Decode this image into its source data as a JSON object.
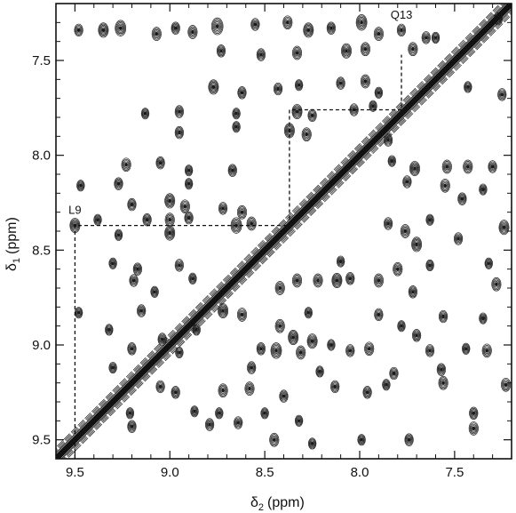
{
  "chart_data": {
    "type": "scatter",
    "subtype": "2D NMR contour plot",
    "title": "",
    "xlabel": "δ",
    "xlabel_sub": "2",
    "xlabel_unit": "(ppm)",
    "ylabel": "δ",
    "ylabel_sub": "1",
    "ylabel_unit": "(ppm)",
    "xlim": [
      9.6,
      7.2
    ],
    "ylim": [
      7.2,
      9.6
    ],
    "x_reversed": true,
    "y_reversed": true,
    "xticks": [
      9.5,
      9.0,
      8.5,
      8.0,
      7.5
    ],
    "xtick_labels": [
      "9.5",
      "9.0",
      "8.5",
      "8.0",
      "7.5"
    ],
    "yticks": [
      7.5,
      8.0,
      8.5,
      9.0,
      9.5
    ],
    "ytick_labels": [
      "7.5",
      "8.0",
      "8.5",
      "9.0",
      "9.5"
    ],
    "grid": false,
    "diagonal": {
      "from": [
        9.6,
        9.6
      ],
      "to": [
        7.2,
        7.2
      ]
    },
    "annotations": [
      {
        "label": "L9",
        "x": 9.5,
        "y": 8.37
      },
      {
        "label": "Q13",
        "x": 7.78,
        "y": 7.34
      }
    ],
    "assignment_path": [
      [
        9.5,
        9.6
      ],
      [
        9.5,
        8.37
      ],
      [
        8.37,
        8.37
      ],
      [
        8.37,
        7.76
      ],
      [
        7.78,
        7.76
      ],
      [
        7.78,
        7.47
      ]
    ],
    "peaks": [
      {
        "x": 9.48,
        "y": 7.34,
        "s": 0.7
      },
      {
        "x": 9.35,
        "y": 7.34,
        "s": 0.9
      },
      {
        "x": 9.26,
        "y": 7.33,
        "s": 1.0
      },
      {
        "x": 9.07,
        "y": 7.36,
        "s": 0.8
      },
      {
        "x": 8.97,
        "y": 7.33,
        "s": 0.7
      },
      {
        "x": 8.88,
        "y": 7.35,
        "s": 0.8
      },
      {
        "x": 8.75,
        "y": 7.32,
        "s": 1.1
      },
      {
        "x": 8.55,
        "y": 7.31,
        "s": 0.7
      },
      {
        "x": 8.38,
        "y": 7.3,
        "s": 0.8
      },
      {
        "x": 8.27,
        "y": 7.34,
        "s": 0.9
      },
      {
        "x": 8.15,
        "y": 7.33,
        "s": 0.7
      },
      {
        "x": 7.99,
        "y": 7.3,
        "s": 1.0
      },
      {
        "x": 7.9,
        "y": 7.36,
        "s": 0.8
      },
      {
        "x": 7.78,
        "y": 7.34,
        "s": 0.7
      },
      {
        "x": 7.65,
        "y": 7.38,
        "s": 0.7
      },
      {
        "x": 7.27,
        "y": 7.28,
        "s": 0.7
      },
      {
        "x": 8.73,
        "y": 7.45,
        "s": 0.7
      },
      {
        "x": 8.52,
        "y": 7.47,
        "s": 0.7
      },
      {
        "x": 8.33,
        "y": 7.46,
        "s": 0.8
      },
      {
        "x": 8.07,
        "y": 7.45,
        "s": 0.9
      },
      {
        "x": 7.97,
        "y": 7.44,
        "s": 0.8
      },
      {
        "x": 7.72,
        "y": 7.44,
        "s": 0.8
      },
      {
        "x": 7.6,
        "y": 7.38,
        "s": 0.6
      },
      {
        "x": 8.77,
        "y": 7.64,
        "s": 0.9
      },
      {
        "x": 8.62,
        "y": 7.67,
        "s": 0.7
      },
      {
        "x": 8.43,
        "y": 7.65,
        "s": 0.7
      },
      {
        "x": 8.32,
        "y": 7.63,
        "s": 0.6
      },
      {
        "x": 8.1,
        "y": 7.62,
        "s": 0.7
      },
      {
        "x": 7.97,
        "y": 7.61,
        "s": 0.8
      },
      {
        "x": 7.43,
        "y": 7.64,
        "s": 0.6
      },
      {
        "x": 7.25,
        "y": 7.68,
        "s": 0.7
      },
      {
        "x": 7.9,
        "y": 7.67,
        "s": 0.6
      },
      {
        "x": 9.13,
        "y": 7.78,
        "s": 0.6
      },
      {
        "x": 8.95,
        "y": 7.77,
        "s": 0.7
      },
      {
        "x": 8.65,
        "y": 7.78,
        "s": 0.6
      },
      {
        "x": 8.33,
        "y": 7.77,
        "s": 0.9
      },
      {
        "x": 8.25,
        "y": 7.79,
        "s": 0.7
      },
      {
        "x": 8.03,
        "y": 7.76,
        "s": 0.7
      },
      {
        "x": 7.93,
        "y": 7.74,
        "s": 0.6
      },
      {
        "x": 8.95,
        "y": 7.88,
        "s": 0.7
      },
      {
        "x": 8.65,
        "y": 7.85,
        "s": 0.6
      },
      {
        "x": 8.37,
        "y": 7.87,
        "s": 0.9
      },
      {
        "x": 8.28,
        "y": 7.89,
        "s": 0.8
      },
      {
        "x": 7.85,
        "y": 7.92,
        "s": 0.7
      },
      {
        "x": 9.23,
        "y": 8.05,
        "s": 0.8
      },
      {
        "x": 9.05,
        "y": 8.04,
        "s": 0.7
      },
      {
        "x": 8.9,
        "y": 8.08,
        "s": 0.6
      },
      {
        "x": 8.67,
        "y": 8.08,
        "s": 0.7
      },
      {
        "x": 7.83,
        "y": 8.03,
        "s": 0.6
      },
      {
        "x": 7.71,
        "y": 8.07,
        "s": 0.9
      },
      {
        "x": 7.54,
        "y": 8.06,
        "s": 0.8
      },
      {
        "x": 7.43,
        "y": 8.06,
        "s": 0.8
      },
      {
        "x": 7.3,
        "y": 8.06,
        "s": 0.7
      },
      {
        "x": 9.47,
        "y": 8.16,
        "s": 0.6
      },
      {
        "x": 9.27,
        "y": 8.15,
        "s": 0.7
      },
      {
        "x": 8.9,
        "y": 8.15,
        "s": 0.6
      },
      {
        "x": 7.75,
        "y": 8.14,
        "s": 0.7
      },
      {
        "x": 7.55,
        "y": 8.16,
        "s": 0.8
      },
      {
        "x": 7.35,
        "y": 8.18,
        "s": 0.6
      },
      {
        "x": 9.2,
        "y": 8.26,
        "s": 0.7
      },
      {
        "x": 9.0,
        "y": 8.24,
        "s": 0.9
      },
      {
        "x": 8.92,
        "y": 8.27,
        "s": 0.8
      },
      {
        "x": 8.72,
        "y": 8.28,
        "s": 0.7
      },
      {
        "x": 8.62,
        "y": 8.3,
        "s": 0.8
      },
      {
        "x": 7.46,
        "y": 8.23,
        "s": 0.7
      },
      {
        "x": 9.5,
        "y": 8.37,
        "s": 0.9
      },
      {
        "x": 9.38,
        "y": 8.34,
        "s": 0.6
      },
      {
        "x": 9.12,
        "y": 8.34,
        "s": 0.7
      },
      {
        "x": 9.0,
        "y": 8.34,
        "s": 0.8
      },
      {
        "x": 8.9,
        "y": 8.33,
        "s": 0.7
      },
      {
        "x": 8.65,
        "y": 8.37,
        "s": 1.0
      },
      {
        "x": 8.57,
        "y": 8.36,
        "s": 0.8
      },
      {
        "x": 7.63,
        "y": 8.34,
        "s": 0.6
      },
      {
        "x": 7.85,
        "y": 8.36,
        "s": 0.7
      },
      {
        "x": 7.24,
        "y": 8.38,
        "s": 0.9
      },
      {
        "x": 9.27,
        "y": 8.42,
        "s": 0.6
      },
      {
        "x": 9.0,
        "y": 8.41,
        "s": 0.9
      },
      {
        "x": 7.76,
        "y": 8.4,
        "s": 0.8
      },
      {
        "x": 7.7,
        "y": 8.47,
        "s": 0.9
      },
      {
        "x": 7.48,
        "y": 8.44,
        "s": 0.7
      },
      {
        "x": 9.3,
        "y": 8.57,
        "s": 0.6
      },
      {
        "x": 9.17,
        "y": 8.6,
        "s": 0.7
      },
      {
        "x": 8.95,
        "y": 8.58,
        "s": 0.7
      },
      {
        "x": 8.1,
        "y": 8.56,
        "s": 0.6
      },
      {
        "x": 7.8,
        "y": 8.6,
        "s": 0.8
      },
      {
        "x": 7.63,
        "y": 8.58,
        "s": 0.6
      },
      {
        "x": 7.32,
        "y": 8.57,
        "s": 0.6
      },
      {
        "x": 9.19,
        "y": 8.66,
        "s": 0.7
      },
      {
        "x": 8.88,
        "y": 8.65,
        "s": 0.6
      },
      {
        "x": 8.33,
        "y": 8.66,
        "s": 0.8
      },
      {
        "x": 8.22,
        "y": 8.66,
        "s": 0.8
      },
      {
        "x": 8.12,
        "y": 8.66,
        "s": 0.9
      },
      {
        "x": 8.05,
        "y": 8.65,
        "s": 0.7
      },
      {
        "x": 7.9,
        "y": 8.66,
        "s": 0.8
      },
      {
        "x": 7.28,
        "y": 8.68,
        "s": 0.8
      },
      {
        "x": 9.08,
        "y": 8.72,
        "s": 0.6
      },
      {
        "x": 8.42,
        "y": 8.7,
        "s": 0.8
      },
      {
        "x": 7.72,
        "y": 8.72,
        "s": 0.7
      },
      {
        "x": 9.48,
        "y": 8.83,
        "s": 0.6
      },
      {
        "x": 9.15,
        "y": 8.82,
        "s": 0.7
      },
      {
        "x": 8.72,
        "y": 8.82,
        "s": 0.9
      },
      {
        "x": 8.62,
        "y": 8.84,
        "s": 0.8
      },
      {
        "x": 8.27,
        "y": 8.83,
        "s": 0.6
      },
      {
        "x": 7.9,
        "y": 8.84,
        "s": 0.7
      },
      {
        "x": 7.56,
        "y": 8.85,
        "s": 0.7
      },
      {
        "x": 7.35,
        "y": 8.86,
        "s": 0.6
      },
      {
        "x": 9.32,
        "y": 8.92,
        "s": 0.6
      },
      {
        "x": 8.86,
        "y": 8.92,
        "s": 0.6
      },
      {
        "x": 8.42,
        "y": 8.9,
        "s": 0.8
      },
      {
        "x": 8.35,
        "y": 8.96,
        "s": 0.9
      },
      {
        "x": 7.78,
        "y": 8.9,
        "s": 0.6
      },
      {
        "x": 9.04,
        "y": 8.97,
        "s": 0.7
      },
      {
        "x": 8.25,
        "y": 8.98,
        "s": 0.9
      },
      {
        "x": 7.7,
        "y": 8.95,
        "s": 0.7
      },
      {
        "x": 9.2,
        "y": 9.02,
        "s": 0.7
      },
      {
        "x": 8.95,
        "y": 9.04,
        "s": 0.6
      },
      {
        "x": 8.52,
        "y": 9.02,
        "s": 0.7
      },
      {
        "x": 8.44,
        "y": 9.03,
        "s": 1.0
      },
      {
        "x": 8.31,
        "y": 9.04,
        "s": 0.8
      },
      {
        "x": 8.15,
        "y": 9.0,
        "s": 0.6
      },
      {
        "x": 8.05,
        "y": 9.03,
        "s": 0.7
      },
      {
        "x": 7.95,
        "y": 9.02,
        "s": 0.8
      },
      {
        "x": 7.63,
        "y": 9.03,
        "s": 0.7
      },
      {
        "x": 7.44,
        "y": 9.02,
        "s": 0.6
      },
      {
        "x": 7.33,
        "y": 9.03,
        "s": 0.8
      },
      {
        "x": 9.3,
        "y": 9.12,
        "s": 0.6
      },
      {
        "x": 8.57,
        "y": 9.12,
        "s": 0.7
      },
      {
        "x": 8.21,
        "y": 9.14,
        "s": 0.6
      },
      {
        "x": 7.82,
        "y": 9.15,
        "s": 0.7
      },
      {
        "x": 7.57,
        "y": 9.13,
        "s": 0.7
      },
      {
        "x": 9.05,
        "y": 9.22,
        "s": 0.7
      },
      {
        "x": 8.97,
        "y": 9.25,
        "s": 0.7
      },
      {
        "x": 8.72,
        "y": 9.24,
        "s": 0.8
      },
      {
        "x": 8.58,
        "y": 9.23,
        "s": 0.8
      },
      {
        "x": 8.4,
        "y": 9.27,
        "s": 0.7
      },
      {
        "x": 8.13,
        "y": 9.22,
        "s": 0.7
      },
      {
        "x": 7.96,
        "y": 9.25,
        "s": 0.7
      },
      {
        "x": 7.86,
        "y": 9.21,
        "s": 0.6
      },
      {
        "x": 7.56,
        "y": 9.2,
        "s": 0.8
      },
      {
        "x": 7.23,
        "y": 9.21,
        "s": 0.8
      },
      {
        "x": 9.21,
        "y": 9.36,
        "s": 0.6
      },
      {
        "x": 8.87,
        "y": 9.35,
        "s": 0.6
      },
      {
        "x": 8.74,
        "y": 9.36,
        "s": 0.6
      },
      {
        "x": 8.5,
        "y": 9.36,
        "s": 0.6
      },
      {
        "x": 7.4,
        "y": 9.36,
        "s": 0.7
      },
      {
        "x": 9.2,
        "y": 9.43,
        "s": 0.7
      },
      {
        "x": 8.79,
        "y": 9.42,
        "s": 0.7
      },
      {
        "x": 8.64,
        "y": 9.41,
        "s": 0.7
      },
      {
        "x": 8.32,
        "y": 9.4,
        "s": 0.6
      },
      {
        "x": 7.4,
        "y": 9.44,
        "s": 0.8
      },
      {
        "x": 8.45,
        "y": 9.5,
        "s": 0.8
      },
      {
        "x": 8.25,
        "y": 9.52,
        "s": 0.6
      },
      {
        "x": 7.99,
        "y": 9.5,
        "s": 0.6
      },
      {
        "x": 7.74,
        "y": 9.5,
        "s": 0.7
      }
    ]
  }
}
